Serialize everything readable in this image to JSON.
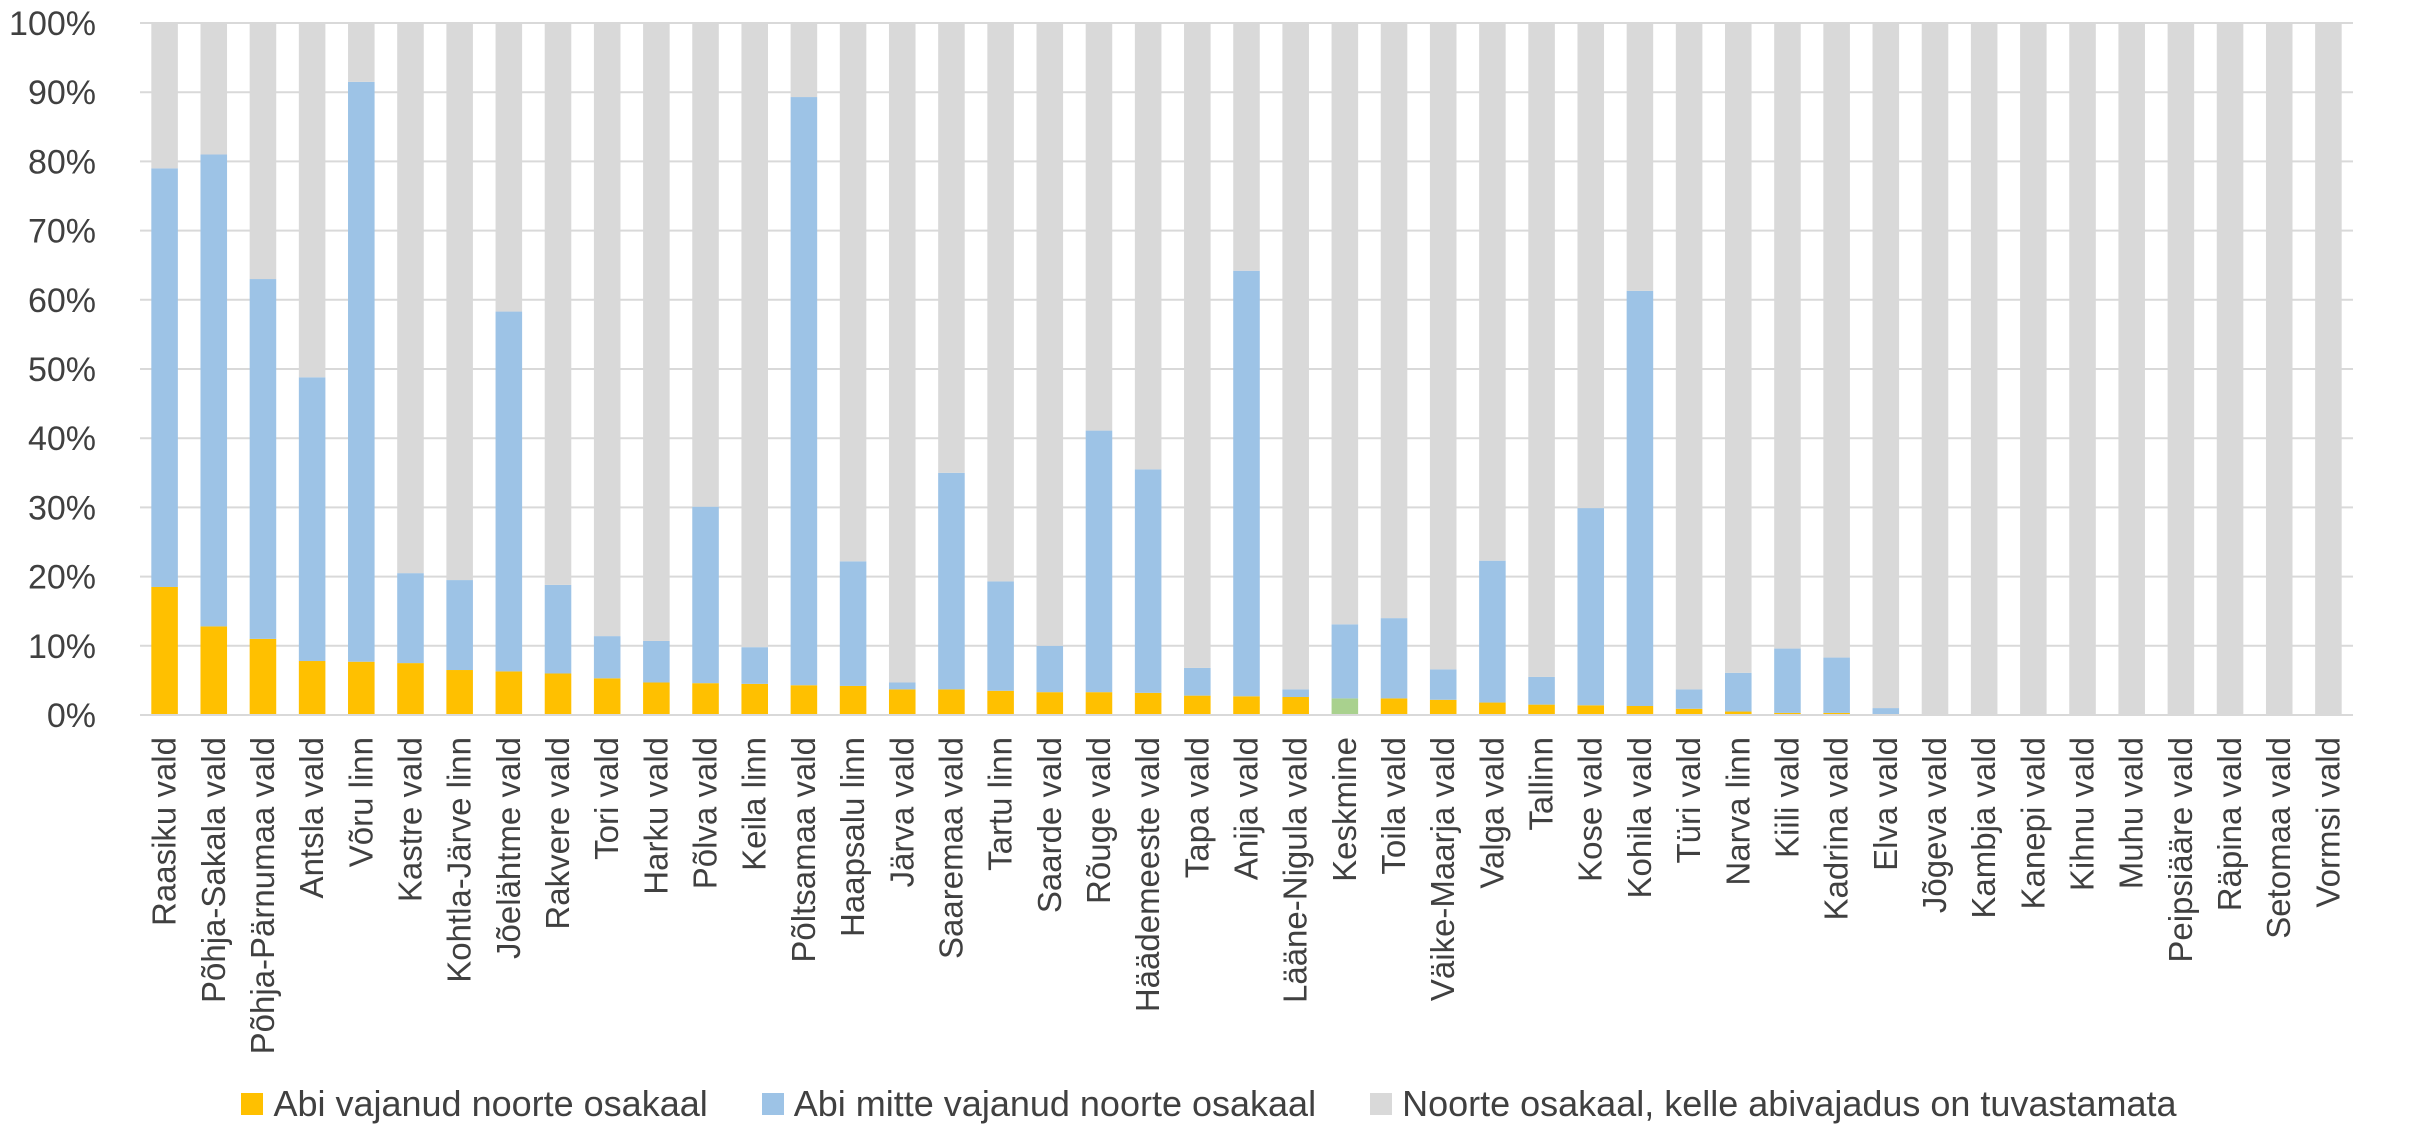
{
  "chart_data": {
    "type": "bar",
    "stacked": true,
    "stacking": "percent",
    "y_axis": {
      "ylim": [
        0,
        100
      ],
      "tick_labels": [
        "0%",
        "10%",
        "20%",
        "30%",
        "40%",
        "50%",
        "60%",
        "70%",
        "80%",
        "90%",
        "100%"
      ]
    },
    "grid": true,
    "legend_placement": "bottom",
    "categories": [
      "Raasiku vald",
      "Põhja-Sakala vald",
      "Põhja-Pärnumaa vald",
      "Antsla vald",
      "Võru linn",
      "Kastre vald",
      "Kohtla-Järve linn",
      "Jõelähtme vald",
      "Rakvere vald",
      "Tori vald",
      "Harku vald",
      "Põlva vald",
      "Keila linn",
      "Põltsamaa vald",
      "Haapsalu linn",
      "Järva vald",
      "Saaremaa vald",
      "Tartu linn",
      "Saarde vald",
      "Rõuge vald",
      "Häädemeeste vald",
      "Tapa vald",
      "Anija vald",
      "Lääne-Nigula vald",
      "Keskmine",
      "Toila vald",
      "Väike-Maarja vald",
      "Valga vald",
      "Tallinn",
      "Kose vald",
      "Kohila vald",
      "Türi vald",
      "Narva linn",
      "Kiili vald",
      "Kadrina vald",
      "Elva vald",
      "Jõgeva vald",
      "Kambja vald",
      "Kanepi vald",
      "Kihnu vald",
      "Muhu vald",
      "Peipsiääre vald",
      "Räpina vald",
      "Setomaa vald",
      "Vormsi vald"
    ],
    "series": [
      {
        "name": "Abi vajanud noorte osakaal",
        "color": "#ffc000",
        "values": [
          18.5,
          12.8,
          11.0,
          7.8,
          7.7,
          7.5,
          6.5,
          6.3,
          6.0,
          5.3,
          4.7,
          4.6,
          4.5,
          4.3,
          4.2,
          3.7,
          3.7,
          3.5,
          3.3,
          3.3,
          3.2,
          2.8,
          2.7,
          2.6,
          2.4,
          2.4,
          2.2,
          1.8,
          1.5,
          1.4,
          1.3,
          0.9,
          0.5,
          0.3,
          0.3,
          0.1,
          0,
          0,
          0,
          0,
          0,
          0,
          0,
          0,
          0
        ]
      },
      {
        "name": "Abi mitte vajanud noorte osakaal",
        "color": "#9dc3e6",
        "values": [
          60.5,
          68.2,
          52.0,
          41.0,
          83.8,
          13.0,
          13.0,
          52.0,
          12.8,
          6.1,
          6.0,
          25.5,
          5.3,
          85.0,
          18.0,
          1.0,
          31.3,
          15.8,
          6.7,
          37.8,
          32.3,
          4.0,
          61.5,
          1.1,
          10.7,
          11.6,
          4.4,
          20.5,
          4.0,
          28.5,
          60.0,
          2.8,
          5.6,
          9.3,
          8.0,
          0.9,
          0,
          0,
          0,
          0,
          0,
          0,
          0,
          0,
          0
        ]
      },
      {
        "name": "Noorte osakaal, kelle abivajadus on tuvastamata",
        "color": "#d9d9d9",
        "values": [
          21.0,
          19.0,
          37.0,
          51.2,
          8.5,
          79.5,
          80.5,
          41.7,
          81.2,
          88.6,
          89.3,
          69.9,
          90.2,
          10.7,
          77.8,
          95.3,
          65.0,
          80.7,
          90.0,
          58.9,
          64.5,
          93.2,
          35.8,
          96.3,
          86.9,
          86.0,
          93.4,
          77.7,
          94.5,
          70.1,
          38.7,
          96.3,
          93.9,
          90.4,
          91.7,
          99.0,
          100,
          100,
          100,
          100,
          100,
          100,
          100,
          100,
          100
        ]
      }
    ],
    "highlight": {
      "category": "Keskmine",
      "color": "#a9d18e"
    }
  }
}
